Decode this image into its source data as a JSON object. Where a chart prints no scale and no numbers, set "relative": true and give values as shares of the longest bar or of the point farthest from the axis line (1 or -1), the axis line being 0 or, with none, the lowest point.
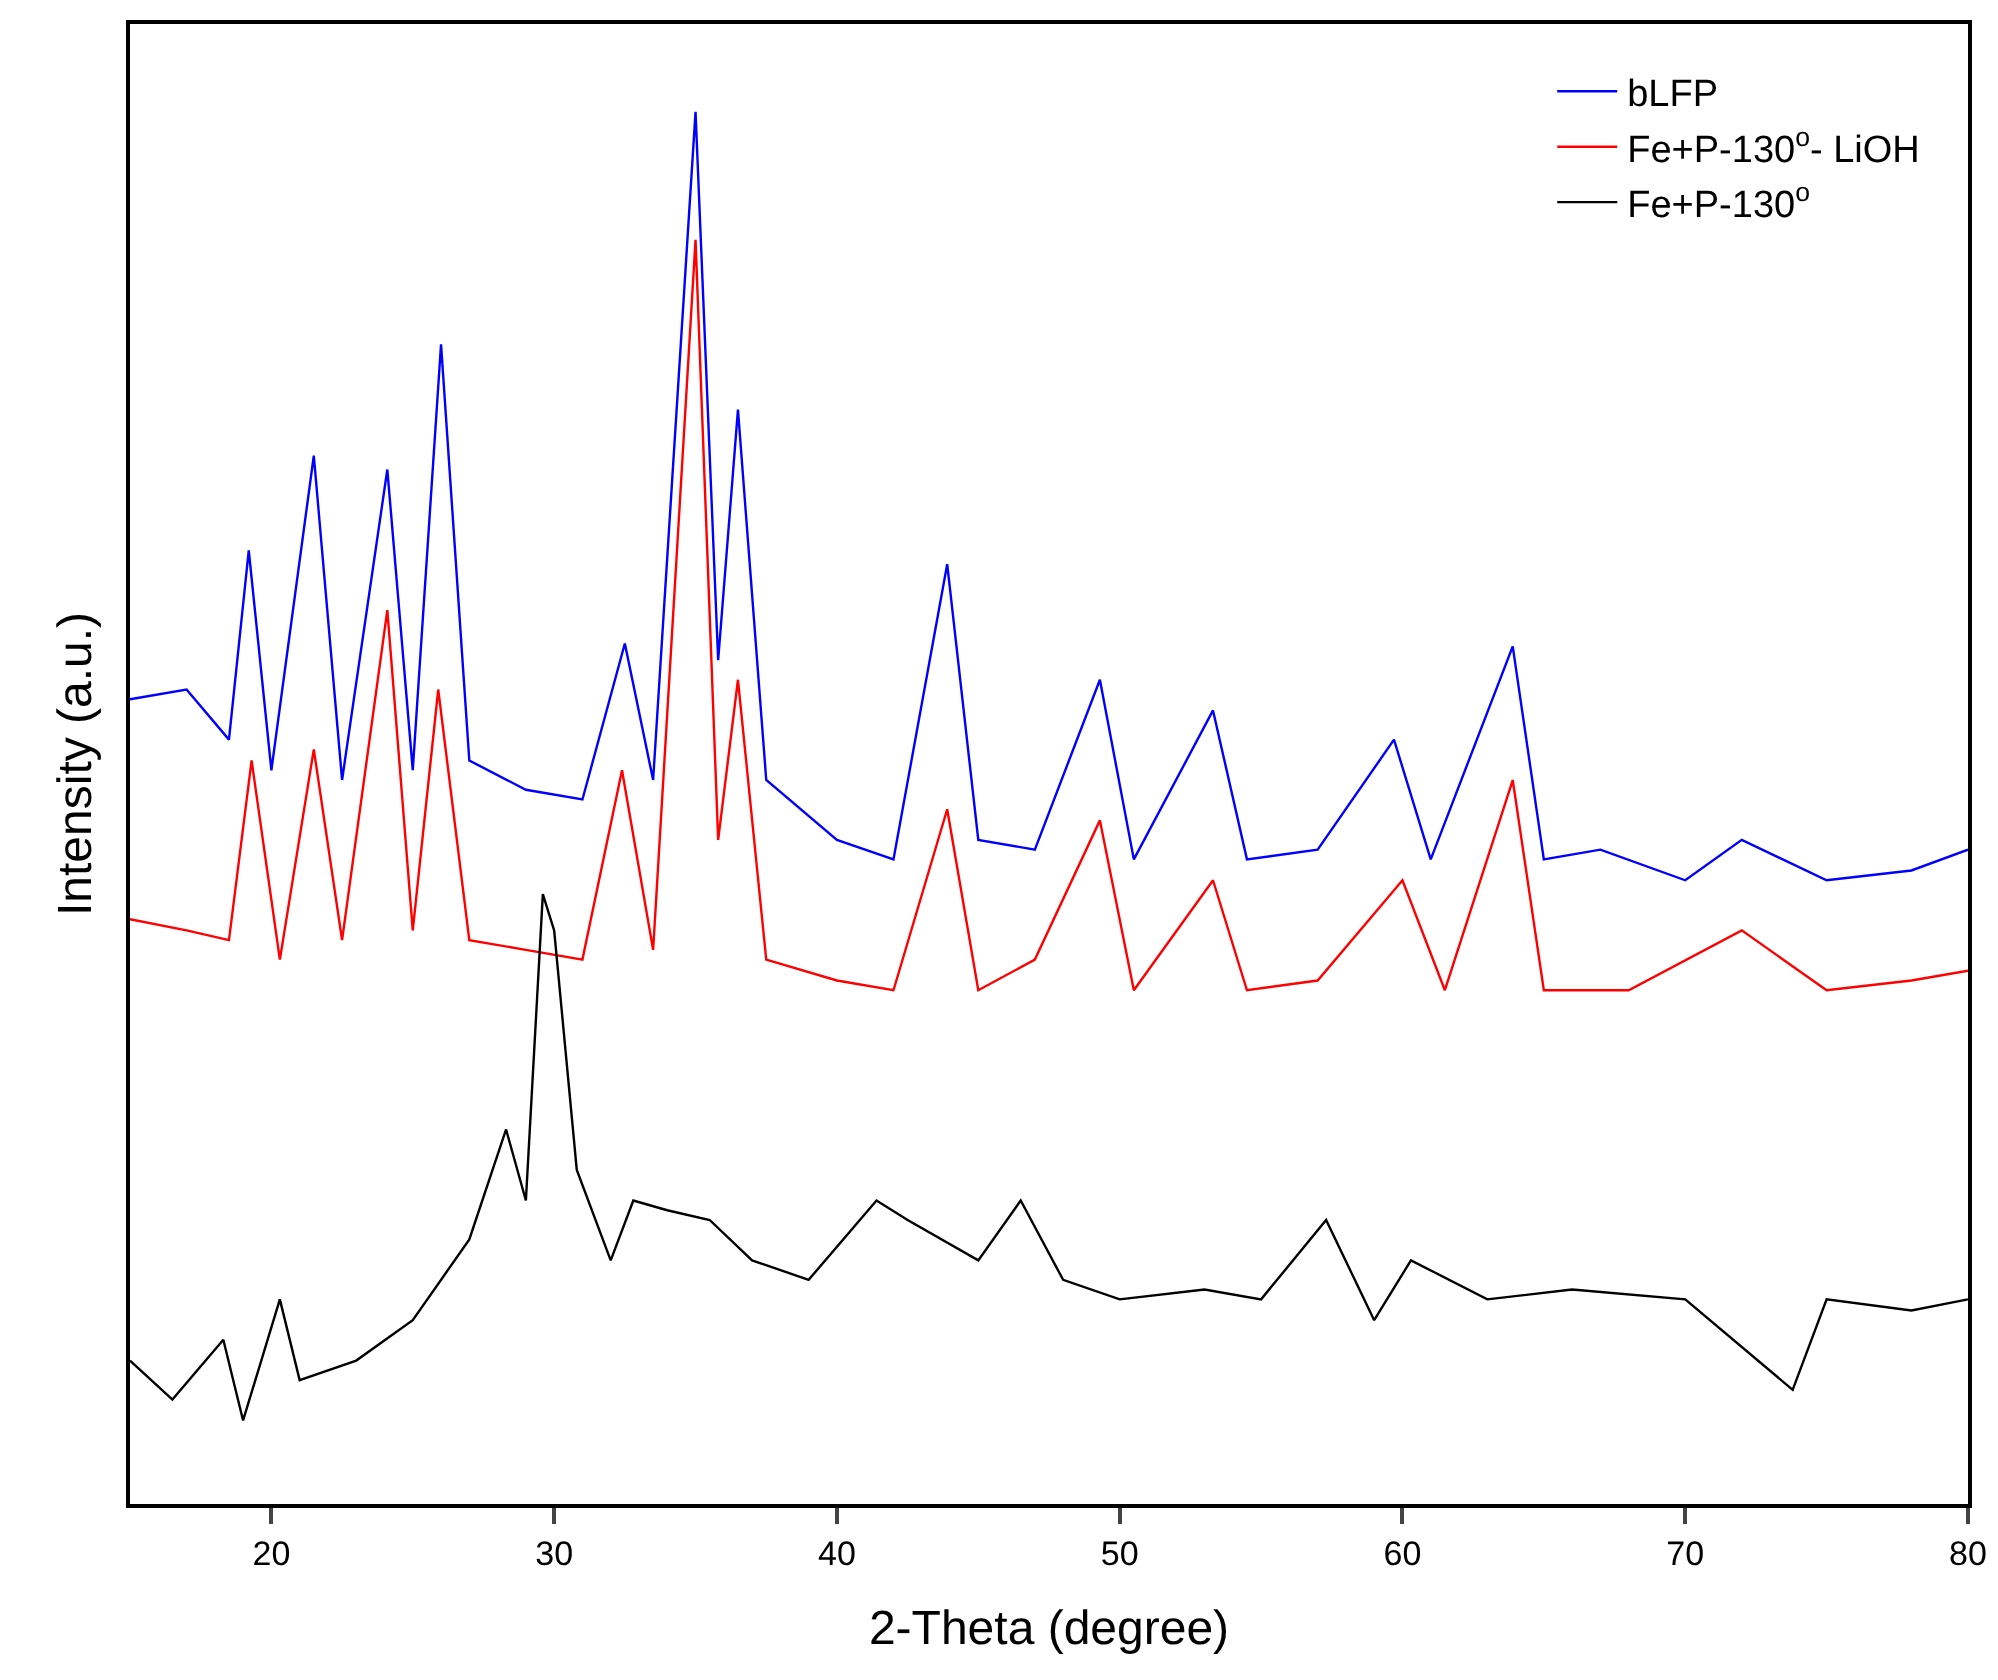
{
  "chart_data": {
    "type": "line",
    "xlabel": "2-Theta (degree)",
    "ylabel": "Intensity (a.u.)",
    "relative": true,
    "xlim": [
      15,
      80
    ],
    "xticks": [
      20,
      30,
      40,
      50,
      60,
      70,
      80
    ],
    "legend": "top right",
    "grid": false,
    "marker": "none",
    "line_style": "solid",
    "series": [
      {
        "name": "bLFP",
        "color": "#0000ff",
        "x": [
          15,
          17,
          18.5,
          19.2,
          20,
          21.5,
          22.5,
          24.1,
          25,
          26,
          27,
          29,
          31,
          32.5,
          33.5,
          35,
          35.8,
          36.5,
          37.5,
          40,
          42,
          43.9,
          45,
          47,
          49.3,
          50.5,
          53.3,
          54.5,
          57,
          59.7,
          61,
          63.9,
          65,
          67,
          70,
          72,
          75,
          78,
          80
        ],
        "values": [
          0.578,
          0.585,
          0.549,
          0.685,
          0.527,
          0.753,
          0.52,
          0.743,
          0.527,
          0.833,
          0.534,
          0.513,
          0.506,
          0.618,
          0.52,
          1.0,
          0.606,
          0.786,
          0.52,
          0.477,
          0.463,
          0.675,
          0.477,
          0.47,
          0.592,
          0.463,
          0.57,
          0.463,
          0.47,
          0.549,
          0.463,
          0.616,
          0.463,
          0.47,
          0.448,
          0.477,
          0.448,
          0.455,
          0.47
        ]
      },
      {
        "name": "Fe+P-130$^{o}$- LiOH",
        "color": "#ff0000",
        "x": [
          15,
          17,
          18.5,
          19.3,
          20.3,
          21.5,
          22.5,
          24.1,
          25,
          25.9,
          27,
          29,
          31,
          32.4,
          33.5,
          35,
          35.8,
          36.5,
          37.5,
          40,
          42,
          43.9,
          45,
          47,
          49.3,
          50.5,
          53.3,
          54.5,
          57,
          60,
          61.5,
          63.9,
          65,
          68,
          72,
          75,
          78,
          80
        ],
        "values": [
          0.42,
          0.412,
          0.405,
          0.534,
          0.391,
          0.542,
          0.405,
          0.642,
          0.412,
          0.585,
          0.405,
          0.398,
          0.391,
          0.527,
          0.398,
          0.908,
          0.477,
          0.592,
          0.391,
          0.376,
          0.369,
          0.499,
          0.369,
          0.391,
          0.491,
          0.369,
          0.448,
          0.369,
          0.376,
          0.448,
          0.369,
          0.52,
          0.369,
          0.369,
          0.412,
          0.369,
          0.376,
          0.383
        ]
      },
      {
        "name": "Fe+P-130$^{o}$",
        "color": "#000000",
        "x": [
          15,
          16.5,
          18.3,
          19,
          20.3,
          21,
          23,
          25,
          27,
          28.3,
          29,
          29.6,
          30,
          30.8,
          32,
          32.8,
          34,
          35.5,
          37,
          39,
          41.4,
          42.5,
          45,
          46.5,
          48,
          50,
          53,
          55,
          57.3,
          59,
          60.3,
          63,
          66,
          70,
          73.8,
          75,
          78,
          80
        ],
        "values": [
          0.103,
          0.075,
          0.118,
          0.06,
          0.147,
          0.089,
          0.103,
          0.132,
          0.19,
          0.269,
          0.218,
          0.438,
          0.412,
          0.24,
          0.175,
          0.218,
          0.211,
          0.204,
          0.175,
          0.161,
          0.218,
          0.204,
          0.175,
          0.218,
          0.161,
          0.147,
          0.154,
          0.147,
          0.204,
          0.132,
          0.175,
          0.147,
          0.154,
          0.147,
          0.082,
          0.147,
          0.139,
          0.147
        ]
      }
    ]
  }
}
